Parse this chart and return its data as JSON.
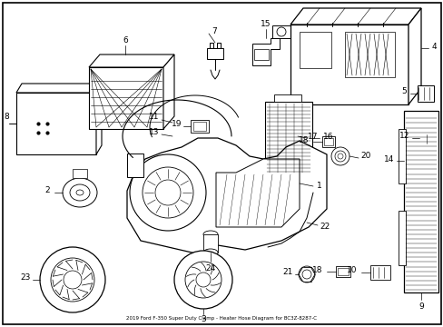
{
  "title": "2019 Ford F-350 Super Duty Clamp - Heater Hose Diagram for BC3Z-8287-C",
  "bg": "#ffffff",
  "lc": "#000000",
  "fig_w": 4.89,
  "fig_h": 3.6,
  "dpi": 100
}
